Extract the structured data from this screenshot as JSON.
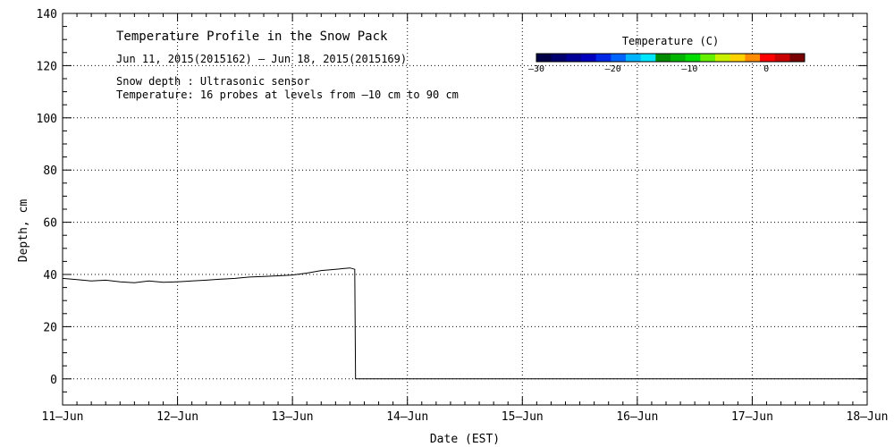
{
  "chart_data": {
    "type": "line",
    "title": "Temperature Profile in the Snow Pack",
    "date_range": "Jun 11, 2015(2015162) – Jun 18, 2015(2015169)",
    "notes": [
      "Snow depth : Ultrasonic sensor",
      "Temperature: 16 probes at levels from –10 cm to 90 cm"
    ],
    "xlabel": "Date (EST)",
    "ylabel": "Depth, cm",
    "xlim": [
      "11-Jun",
      "18-Jun"
    ],
    "ylim": [
      -10,
      140
    ],
    "x_ticks": [
      "11–Jun",
      "12–Jun",
      "13–Jun",
      "14–Jun",
      "15–Jun",
      "16–Jun",
      "17–Jun",
      "18–Jun"
    ],
    "y_ticks": [
      "0",
      "20",
      "40",
      "60",
      "80",
      "100",
      "120",
      "140"
    ],
    "y_tick_values": [
      0,
      20,
      40,
      60,
      80,
      100,
      120,
      140
    ],
    "grid": true,
    "colorbar": {
      "title": "Temperature (C)",
      "range": [
        -30,
        5
      ],
      "ticks": [
        "–30",
        "–20",
        "–10",
        "0"
      ],
      "tick_values": [
        -30,
        -20,
        -10,
        0
      ],
      "colors": [
        "#000046",
        "#00006e",
        "#000096",
        "#0000be",
        "#0028e6",
        "#0064ff",
        "#00b4ff",
        "#00e6ff",
        "#008c00",
        "#00b400",
        "#00dc00",
        "#64f000",
        "#c8f000",
        "#ffd200",
        "#ff8c00",
        "#ff0000",
        "#c80000",
        "#780000"
      ]
    },
    "series": [
      {
        "color": "#000000",
        "x": [
          "06-11 00:00",
          "06-11 03:00",
          "06-11 06:00",
          "06-11 09:00",
          "06-11 12:00",
          "06-11 15:00",
          "06-11 18:00",
          "06-11 21:00",
          "06-12 00:00",
          "06-12 03:00",
          "06-12 06:00",
          "06-12 09:00",
          "06-12 12:00",
          "06-12 15:00",
          "06-12 18:00",
          "06-12 21:00",
          "06-13 00:00",
          "06-13 03:00",
          "06-13 06:00",
          "06-13 09:00",
          "06-13 12:00",
          "06-13 13:00",
          "06-13 13:10",
          "06-14 00:00",
          "06-16 00:00",
          "06-18 00:00"
        ],
        "y": [
          38.5,
          38.0,
          37.5,
          37.8,
          37.2,
          36.8,
          37.5,
          37.0,
          37.2,
          37.5,
          37.8,
          38.2,
          38.5,
          39.0,
          39.2,
          39.5,
          39.8,
          40.5,
          41.5,
          42.0,
          42.5,
          42.0,
          0,
          0,
          0,
          0
        ]
      }
    ]
  }
}
